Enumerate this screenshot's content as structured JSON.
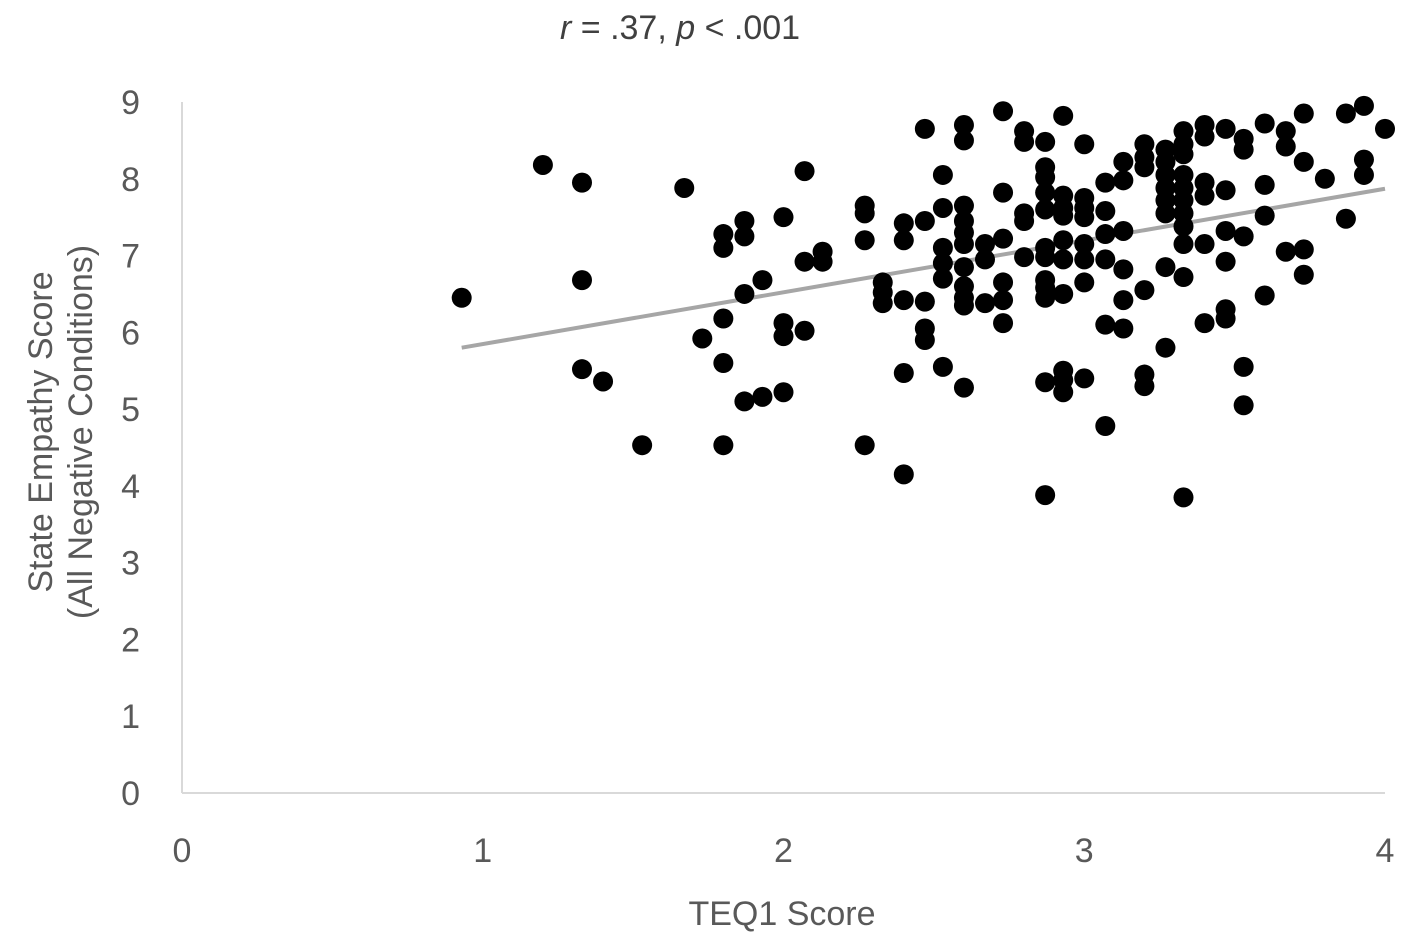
{
  "chart_data": {
    "type": "scatter",
    "annotation": {
      "r_label": "r",
      "r_value": " = .37, ",
      "p_label": "p",
      "p_value": " < .001"
    },
    "xlabel": "TEQ1 Score",
    "ylabel_line1": "State Empathy Score",
    "ylabel_line2": "(All Negative Conditions)",
    "xlim": [
      0,
      4
    ],
    "ylim": [
      0,
      9
    ],
    "x_ticks": [
      "0",
      "1",
      "2",
      "3",
      "4"
    ],
    "y_ticks": [
      "0",
      "1",
      "2",
      "3",
      "4",
      "5",
      "6",
      "7",
      "8",
      "9"
    ],
    "grid": false,
    "legend": "none",
    "marker_color": "#000000",
    "trendline_color": "#a6a6a6",
    "axis_color": "#d9d9d9",
    "trendline": {
      "x": [
        0.93,
        4.0
      ],
      "y": [
        5.8,
        7.87
      ]
    },
    "points": [
      [
        0.93,
        6.45
      ],
      [
        1.2,
        8.18
      ],
      [
        1.33,
        7.95
      ],
      [
        1.33,
        6.68
      ],
      [
        1.33,
        5.52
      ],
      [
        1.4,
        5.36
      ],
      [
        1.53,
        4.53
      ],
      [
        1.67,
        7.88
      ],
      [
        1.73,
        5.92
      ],
      [
        1.8,
        7.28
      ],
      [
        1.8,
        7.1
      ],
      [
        1.8,
        6.18
      ],
      [
        1.8,
        5.6
      ],
      [
        1.8,
        4.53
      ],
      [
        1.87,
        7.45
      ],
      [
        1.87,
        7.25
      ],
      [
        1.87,
        6.5
      ],
      [
        1.87,
        5.1
      ],
      [
        1.93,
        6.68
      ],
      [
        1.93,
        5.16
      ],
      [
        2.0,
        7.5
      ],
      [
        2.0,
        6.12
      ],
      [
        2.0,
        5.95
      ],
      [
        2.0,
        5.22
      ],
      [
        2.07,
        8.1
      ],
      [
        2.07,
        6.92
      ],
      [
        2.07,
        6.02
      ],
      [
        2.13,
        7.05
      ],
      [
        2.13,
        6.92
      ],
      [
        2.27,
        7.65
      ],
      [
        2.27,
        7.55
      ],
      [
        2.27,
        7.2
      ],
      [
        2.27,
        4.53
      ],
      [
        2.33,
        6.65
      ],
      [
        2.33,
        6.52
      ],
      [
        2.33,
        6.38
      ],
      [
        2.4,
        7.42
      ],
      [
        2.4,
        7.2
      ],
      [
        2.4,
        6.42
      ],
      [
        2.4,
        5.47
      ],
      [
        2.4,
        4.15
      ],
      [
        2.47,
        8.65
      ],
      [
        2.47,
        7.45
      ],
      [
        2.47,
        6.4
      ],
      [
        2.47,
        6.05
      ],
      [
        2.47,
        5.9
      ],
      [
        2.53,
        8.05
      ],
      [
        2.53,
        7.62
      ],
      [
        2.53,
        7.1
      ],
      [
        2.53,
        6.9
      ],
      [
        2.53,
        6.7
      ],
      [
        2.53,
        5.55
      ],
      [
        2.6,
        8.7
      ],
      [
        2.6,
        8.5
      ],
      [
        2.6,
        7.65
      ],
      [
        2.6,
        7.45
      ],
      [
        2.6,
        7.3
      ],
      [
        2.6,
        7.15
      ],
      [
        2.6,
        6.85
      ],
      [
        2.6,
        6.6
      ],
      [
        2.6,
        6.45
      ],
      [
        2.6,
        6.35
      ],
      [
        2.6,
        5.28
      ],
      [
        2.67,
        7.15
      ],
      [
        2.67,
        6.95
      ],
      [
        2.67,
        6.38
      ],
      [
        2.73,
        8.88
      ],
      [
        2.73,
        7.82
      ],
      [
        2.73,
        7.22
      ],
      [
        2.73,
        6.65
      ],
      [
        2.73,
        6.42
      ],
      [
        2.73,
        6.12
      ],
      [
        2.8,
        8.62
      ],
      [
        2.8,
        8.48
      ],
      [
        2.8,
        7.55
      ],
      [
        2.8,
        7.45
      ],
      [
        2.8,
        6.98
      ],
      [
        2.87,
        8.48
      ],
      [
        2.87,
        8.15
      ],
      [
        2.87,
        8.02
      ],
      [
        2.87,
        7.82
      ],
      [
        2.87,
        7.6
      ],
      [
        2.87,
        7.1
      ],
      [
        2.87,
        6.98
      ],
      [
        2.87,
        6.68
      ],
      [
        2.87,
        6.58
      ],
      [
        2.87,
        6.45
      ],
      [
        2.87,
        5.35
      ],
      [
        2.87,
        3.88
      ],
      [
        2.93,
        8.82
      ],
      [
        2.93,
        7.78
      ],
      [
        2.93,
        7.62
      ],
      [
        2.93,
        7.52
      ],
      [
        2.93,
        7.2
      ],
      [
        2.93,
        6.95
      ],
      [
        2.93,
        6.5
      ],
      [
        2.93,
        5.5
      ],
      [
        2.93,
        5.38
      ],
      [
        2.93,
        5.22
      ],
      [
        3.0,
        8.45
      ],
      [
        3.0,
        7.75
      ],
      [
        3.0,
        7.62
      ],
      [
        3.0,
        7.5
      ],
      [
        3.0,
        7.15
      ],
      [
        3.0,
        6.95
      ],
      [
        3.0,
        6.65
      ],
      [
        3.0,
        5.4
      ],
      [
        3.07,
        7.95
      ],
      [
        3.07,
        7.58
      ],
      [
        3.07,
        7.28
      ],
      [
        3.07,
        6.95
      ],
      [
        3.07,
        6.1
      ],
      [
        3.07,
        4.78
      ],
      [
        3.13,
        8.22
      ],
      [
        3.13,
        7.98
      ],
      [
        3.13,
        7.32
      ],
      [
        3.13,
        6.82
      ],
      [
        3.13,
        6.42
      ],
      [
        3.13,
        6.05
      ],
      [
        3.2,
        8.45
      ],
      [
        3.2,
        8.28
      ],
      [
        3.2,
        8.15
      ],
      [
        3.2,
        6.55
      ],
      [
        3.2,
        5.45
      ],
      [
        3.2,
        5.3
      ],
      [
        3.27,
        8.38
      ],
      [
        3.27,
        8.22
      ],
      [
        3.27,
        8.05
      ],
      [
        3.27,
        7.88
      ],
      [
        3.27,
        7.72
      ],
      [
        3.27,
        7.55
      ],
      [
        3.27,
        6.85
      ],
      [
        3.27,
        5.8
      ],
      [
        3.33,
        8.62
      ],
      [
        3.33,
        8.45
      ],
      [
        3.33,
        8.32
      ],
      [
        3.33,
        8.05
      ],
      [
        3.33,
        7.88
      ],
      [
        3.33,
        7.72
      ],
      [
        3.33,
        7.55
      ],
      [
        3.33,
        7.38
      ],
      [
        3.33,
        7.15
      ],
      [
        3.33,
        6.72
      ],
      [
        3.33,
        3.85
      ],
      [
        3.4,
        8.7
      ],
      [
        3.4,
        8.55
      ],
      [
        3.4,
        7.95
      ],
      [
        3.4,
        7.78
      ],
      [
        3.4,
        7.15
      ],
      [
        3.4,
        6.12
      ],
      [
        3.47,
        8.65
      ],
      [
        3.47,
        7.85
      ],
      [
        3.47,
        7.32
      ],
      [
        3.47,
        6.92
      ],
      [
        3.47,
        6.3
      ],
      [
        3.47,
        6.18
      ],
      [
        3.53,
        8.52
      ],
      [
        3.53,
        8.38
      ],
      [
        3.53,
        7.25
      ],
      [
        3.53,
        5.55
      ],
      [
        3.53,
        5.05
      ],
      [
        3.6,
        8.72
      ],
      [
        3.6,
        7.92
      ],
      [
        3.6,
        7.52
      ],
      [
        3.6,
        6.48
      ],
      [
        3.67,
        8.62
      ],
      [
        3.67,
        8.42
      ],
      [
        3.67,
        7.05
      ],
      [
        3.73,
        8.85
      ],
      [
        3.73,
        8.22
      ],
      [
        3.73,
        7.08
      ],
      [
        3.73,
        6.75
      ],
      [
        3.8,
        8.0
      ],
      [
        3.87,
        8.85
      ],
      [
        3.87,
        7.48
      ],
      [
        3.93,
        8.95
      ],
      [
        3.93,
        8.25
      ],
      [
        3.93,
        8.05
      ],
      [
        4.0,
        8.65
      ]
    ]
  }
}
